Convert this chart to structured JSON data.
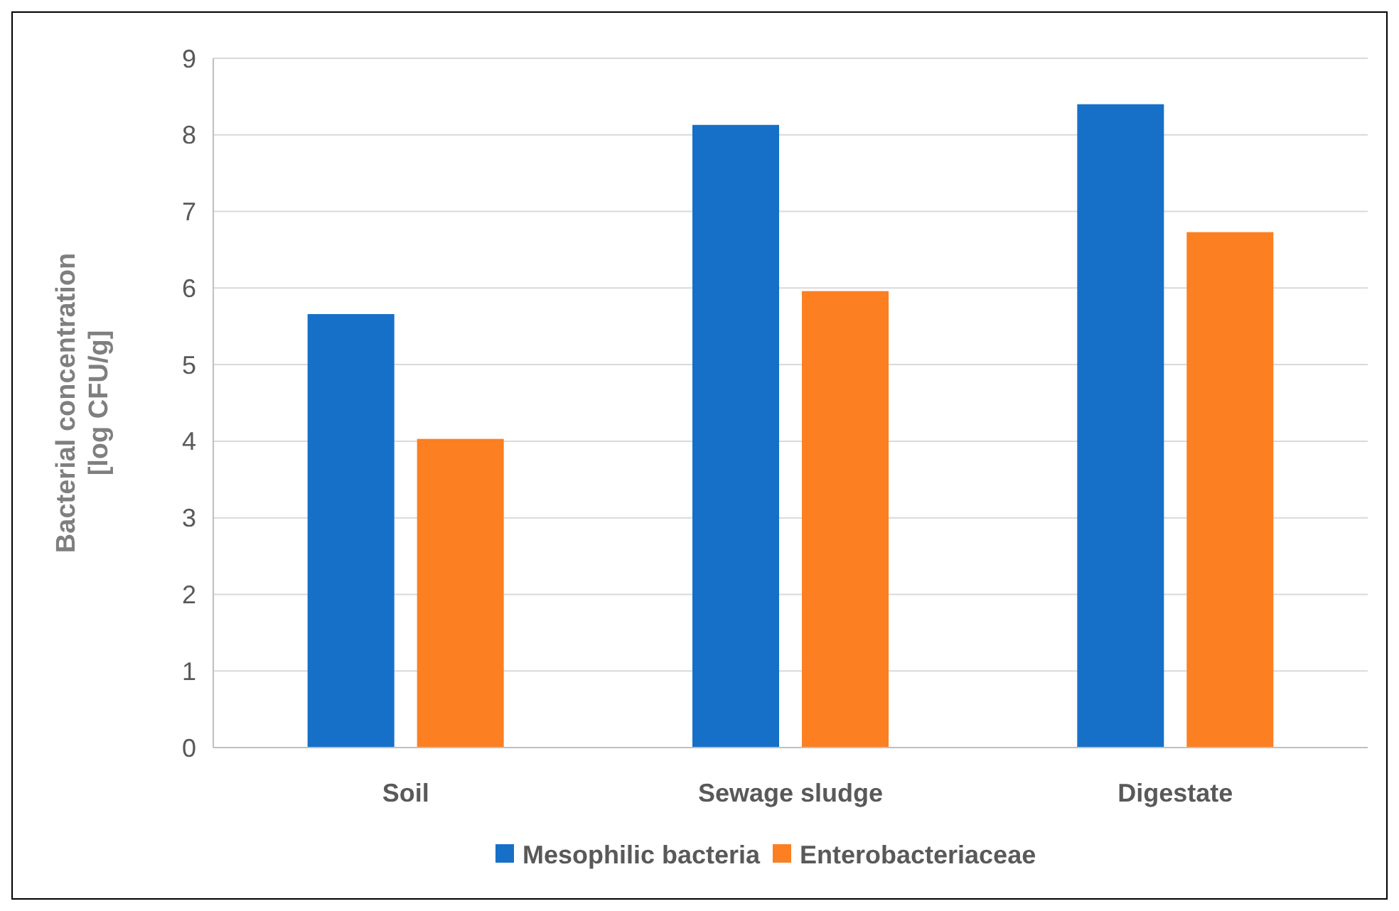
{
  "chart_data": {
    "type": "bar",
    "ylabel": "Bacterial concentration [log CFU/g]",
    "categories": [
      "Soil",
      "Sewage sludge",
      "Digestate"
    ],
    "series": [
      {
        "name": "Mesophilic bacteria",
        "color": "#1670c8",
        "values": [
          5.66,
          8.13,
          8.4
        ]
      },
      {
        "name": "Enterobacteriaceae",
        "color": "#fc7f22",
        "values": [
          4.03,
          5.96,
          6.73
        ]
      }
    ],
    "ylim": [
      0,
      9
    ],
    "yticks": [
      0,
      1,
      2,
      3,
      4,
      5,
      6,
      7,
      8,
      9
    ],
    "grid": "y",
    "legend": "bottom"
  }
}
